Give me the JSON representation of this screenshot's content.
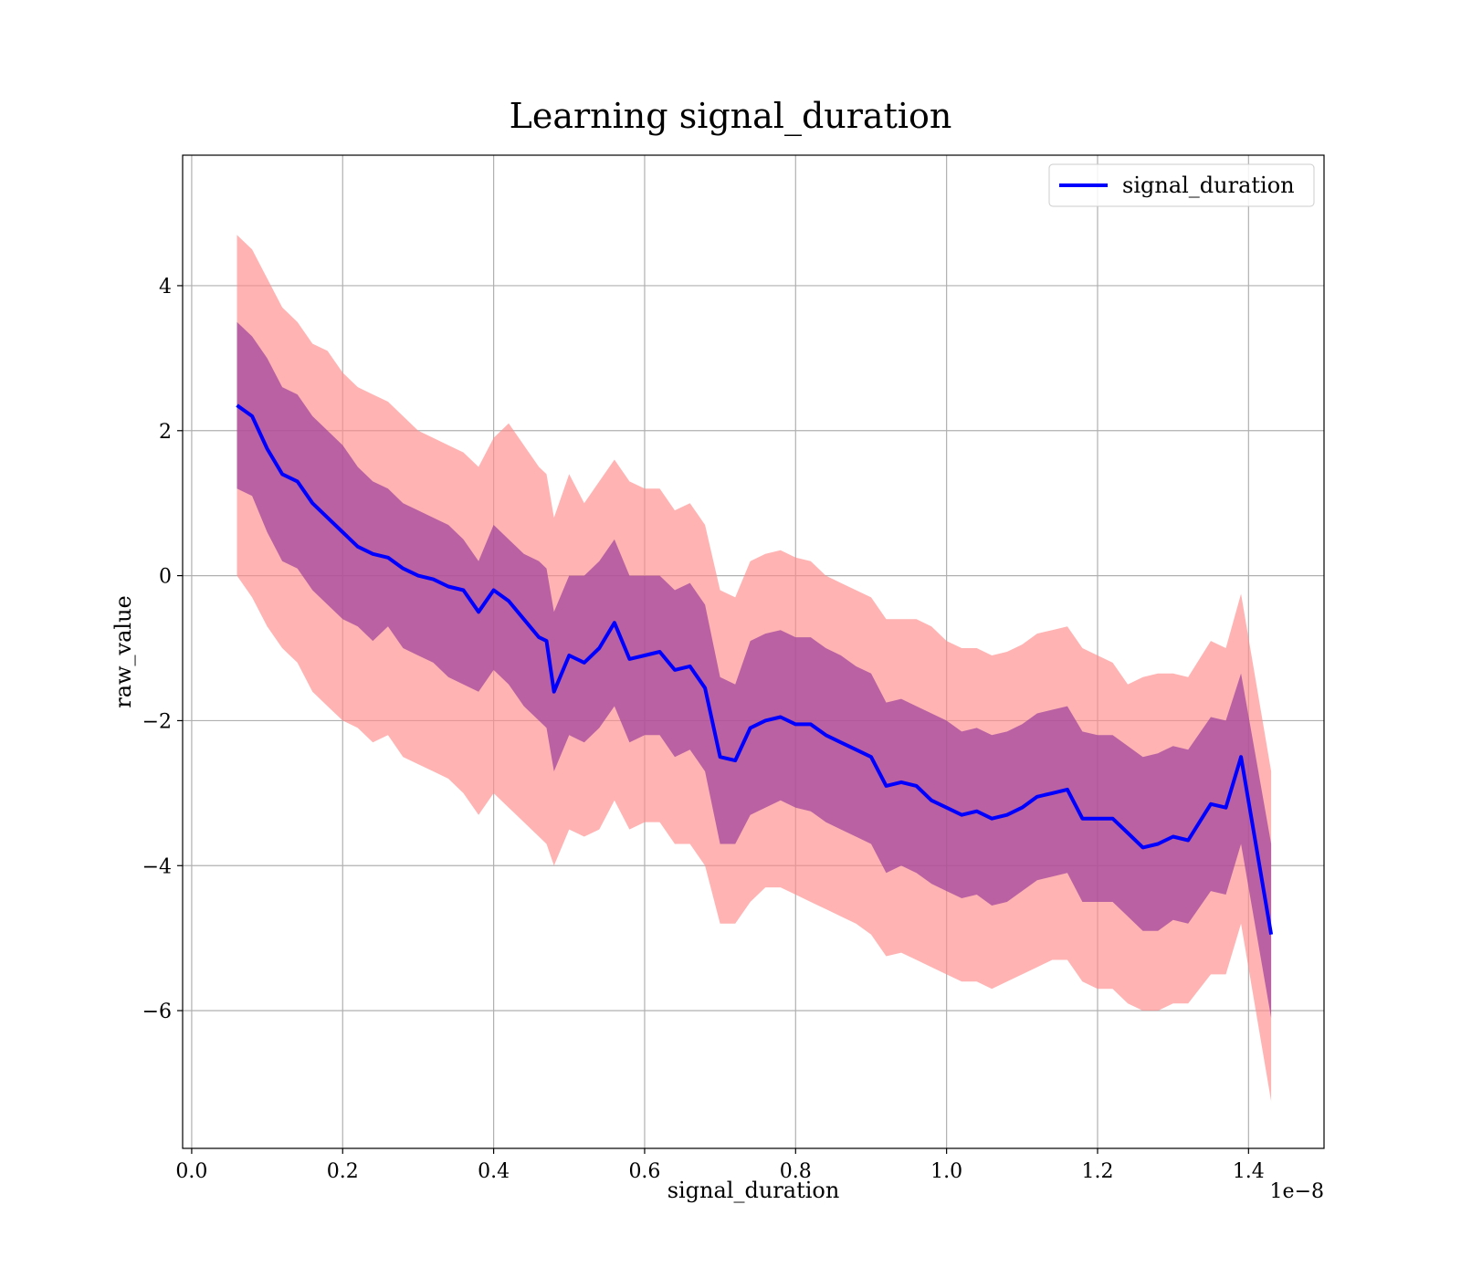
{
  "chart_data": {
    "type": "line",
    "title": "Learning signal_duration",
    "xlabel": "signal_duration",
    "ylabel": "raw_value",
    "x_offset_label": "1e−8",
    "xlim": [
      -0.012,
      1.5
    ],
    "ylim": [
      -7.9,
      5.8
    ],
    "x_ticks": [
      0.0,
      0.2,
      0.4,
      0.6,
      0.8,
      1.0,
      1.2,
      1.4
    ],
    "x_tick_labels": [
      "0.0",
      "0.2",
      "0.4",
      "0.6",
      "0.8",
      "1.0",
      "1.2",
      "1.4"
    ],
    "y_ticks": [
      4,
      2,
      0,
      -2,
      -4,
      -6
    ],
    "y_tick_labels": [
      "4",
      "2",
      "0",
      "−2",
      "−4",
      "−6"
    ],
    "grid": true,
    "legend_position": "top-right",
    "colors": {
      "line": "#0000ff",
      "outer_band": "#ff8a8a",
      "inner_band": "#9b3f9b"
    },
    "series": [
      {
        "name": "signal_duration",
        "x": [
          0.06,
          0.08,
          0.1,
          0.12,
          0.14,
          0.16,
          0.18,
          0.2,
          0.22,
          0.24,
          0.26,
          0.28,
          0.3,
          0.32,
          0.34,
          0.36,
          0.38,
          0.4,
          0.42,
          0.44,
          0.46,
          0.47,
          0.48,
          0.5,
          0.52,
          0.54,
          0.56,
          0.58,
          0.6,
          0.62,
          0.64,
          0.66,
          0.68,
          0.7,
          0.72,
          0.74,
          0.76,
          0.78,
          0.8,
          0.82,
          0.84,
          0.86,
          0.88,
          0.9,
          0.92,
          0.94,
          0.96,
          0.98,
          1.0,
          1.02,
          1.04,
          1.06,
          1.08,
          1.1,
          1.12,
          1.14,
          1.16,
          1.18,
          1.2,
          1.22,
          1.24,
          1.26,
          1.28,
          1.3,
          1.32,
          1.35,
          1.37,
          1.39,
          1.43
        ],
        "y": [
          2.35,
          2.2,
          1.75,
          1.4,
          1.3,
          1.0,
          0.8,
          0.6,
          0.4,
          0.3,
          0.25,
          0.1,
          0.0,
          -0.05,
          -0.15,
          -0.2,
          -0.5,
          -0.2,
          -0.35,
          -0.6,
          -0.85,
          -0.9,
          -1.6,
          -1.1,
          -1.2,
          -1.0,
          -0.65,
          -1.15,
          -1.1,
          -1.05,
          -1.3,
          -1.25,
          -1.55,
          -2.5,
          -2.55,
          -2.1,
          -2.0,
          -1.95,
          -2.05,
          -2.05,
          -2.2,
          -2.3,
          -2.4,
          -2.5,
          -2.9,
          -2.85,
          -2.9,
          -3.1,
          -3.2,
          -3.3,
          -3.25,
          -3.35,
          -3.3,
          -3.2,
          -3.05,
          -3.0,
          -2.95,
          -3.35,
          -3.35,
          -3.35,
          -3.55,
          -3.75,
          -3.7,
          -3.6,
          -3.65,
          -3.15,
          -3.2,
          -2.5,
          -4.95
        ]
      }
    ],
    "band_inner": {
      "upper": [
        3.5,
        3.3,
        3.0,
        2.6,
        2.5,
        2.2,
        2.0,
        1.8,
        1.5,
        1.3,
        1.2,
        1.0,
        0.9,
        0.8,
        0.7,
        0.5,
        0.2,
        0.7,
        0.5,
        0.3,
        0.2,
        0.1,
        -0.5,
        0.0,
        0.0,
        0.2,
        0.5,
        0.0,
        0.0,
        0.0,
        -0.2,
        -0.1,
        -0.4,
        -1.4,
        -1.5,
        -0.9,
        -0.8,
        -0.75,
        -0.85,
        -0.85,
        -1.0,
        -1.1,
        -1.25,
        -1.35,
        -1.75,
        -1.7,
        -1.8,
        -1.9,
        -2.0,
        -2.15,
        -2.1,
        -2.2,
        -2.15,
        -2.05,
        -1.9,
        -1.85,
        -1.8,
        -2.15,
        -2.2,
        -2.2,
        -2.35,
        -2.5,
        -2.45,
        -2.35,
        -2.4,
        -1.95,
        -2.0,
        -1.35,
        -3.7
      ],
      "lower": [
        1.2,
        1.1,
        0.6,
        0.2,
        0.1,
        -0.2,
        -0.4,
        -0.6,
        -0.7,
        -0.9,
        -0.7,
        -1.0,
        -1.1,
        -1.2,
        -1.4,
        -1.5,
        -1.6,
        -1.3,
        -1.5,
        -1.8,
        -2.0,
        -2.1,
        -2.7,
        -2.2,
        -2.3,
        -2.1,
        -1.8,
        -2.3,
        -2.2,
        -2.2,
        -2.5,
        -2.4,
        -2.7,
        -3.7,
        -3.7,
        -3.3,
        -3.2,
        -3.1,
        -3.2,
        -3.25,
        -3.4,
        -3.5,
        -3.6,
        -3.7,
        -4.1,
        -4.0,
        -4.1,
        -4.25,
        -4.35,
        -4.45,
        -4.4,
        -4.55,
        -4.5,
        -4.35,
        -4.2,
        -4.15,
        -4.1,
        -4.5,
        -4.5,
        -4.5,
        -4.7,
        -4.9,
        -4.9,
        -4.75,
        -4.8,
        -4.35,
        -4.4,
        -3.7,
        -6.1
      ]
    },
    "band_outer": {
      "upper": [
        4.7,
        4.5,
        4.1,
        3.7,
        3.5,
        3.2,
        3.1,
        2.8,
        2.6,
        2.5,
        2.4,
        2.2,
        2.0,
        1.9,
        1.8,
        1.7,
        1.5,
        1.9,
        2.1,
        1.8,
        1.5,
        1.4,
        0.8,
        1.4,
        1.0,
        1.3,
        1.6,
        1.3,
        1.2,
        1.2,
        0.9,
        1.0,
        0.7,
        -0.2,
        -0.3,
        0.2,
        0.3,
        0.35,
        0.25,
        0.2,
        0.0,
        -0.1,
        -0.2,
        -0.3,
        -0.6,
        -0.6,
        -0.6,
        -0.7,
        -0.9,
        -1.0,
        -1.0,
        -1.1,
        -1.05,
        -0.95,
        -0.8,
        -0.75,
        -0.7,
        -1.0,
        -1.1,
        -1.2,
        -1.5,
        -1.4,
        -1.35,
        -1.35,
        -1.4,
        -0.9,
        -1.0,
        -0.25,
        -2.7
      ],
      "lower": [
        0.0,
        -0.3,
        -0.7,
        -1.0,
        -1.2,
        -1.6,
        -1.8,
        -2.0,
        -2.1,
        -2.3,
        -2.2,
        -2.5,
        -2.6,
        -2.7,
        -2.8,
        -3.0,
        -3.3,
        -3.0,
        -3.2,
        -3.4,
        -3.6,
        -3.7,
        -4.0,
        -3.5,
        -3.6,
        -3.5,
        -3.1,
        -3.5,
        -3.4,
        -3.4,
        -3.7,
        -3.7,
        -4.0,
        -4.8,
        -4.8,
        -4.5,
        -4.3,
        -4.3,
        -4.4,
        -4.5,
        -4.6,
        -4.7,
        -4.8,
        -4.95,
        -5.25,
        -5.2,
        -5.3,
        -5.4,
        -5.5,
        -5.6,
        -5.6,
        -5.7,
        -5.6,
        -5.5,
        -5.4,
        -5.3,
        -5.3,
        -5.6,
        -5.7,
        -5.7,
        -5.9,
        -6.0,
        -6.0,
        -5.9,
        -5.9,
        -5.5,
        -5.5,
        -4.8,
        -7.25
      ]
    }
  }
}
